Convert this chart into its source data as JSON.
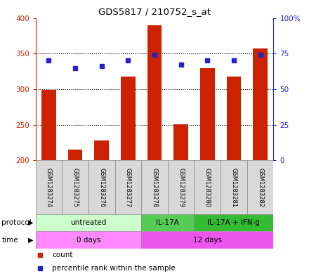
{
  "title": "GDS5817 / 210752_s_at",
  "samples": [
    "GSM1283274",
    "GSM1283275",
    "GSM1283276",
    "GSM1283277",
    "GSM1283278",
    "GSM1283279",
    "GSM1283280",
    "GSM1283281",
    "GSM1283282"
  ],
  "counts": [
    299,
    215,
    228,
    318,
    390,
    251,
    330,
    318,
    357
  ],
  "percentiles": [
    70,
    65,
    66,
    70,
    74,
    67,
    70,
    70,
    74
  ],
  "ylim_left": [
    200,
    400
  ],
  "ylim_right": [
    0,
    100
  ],
  "yticks_left": [
    200,
    250,
    300,
    350,
    400
  ],
  "yticks_right": [
    0,
    25,
    50,
    75,
    100
  ],
  "bar_color": "#cc2200",
  "dot_color": "#2222cc",
  "protocol_groups": [
    {
      "label": "untreated",
      "start": 0,
      "end": 4,
      "color": "#ccffcc"
    },
    {
      "label": "IL-17A",
      "start": 4,
      "end": 6,
      "color": "#55cc55"
    },
    {
      "label": "IL-17A + IFN-g",
      "start": 6,
      "end": 9,
      "color": "#33bb33"
    }
  ],
  "time_groups": [
    {
      "label": "0 days",
      "start": 0,
      "end": 4,
      "color": "#ff88ff"
    },
    {
      "label": "12 days",
      "start": 4,
      "end": 9,
      "color": "#ee55ee"
    }
  ],
  "legend_count_label": "count",
  "legend_percentile_label": "percentile rank within the sample"
}
